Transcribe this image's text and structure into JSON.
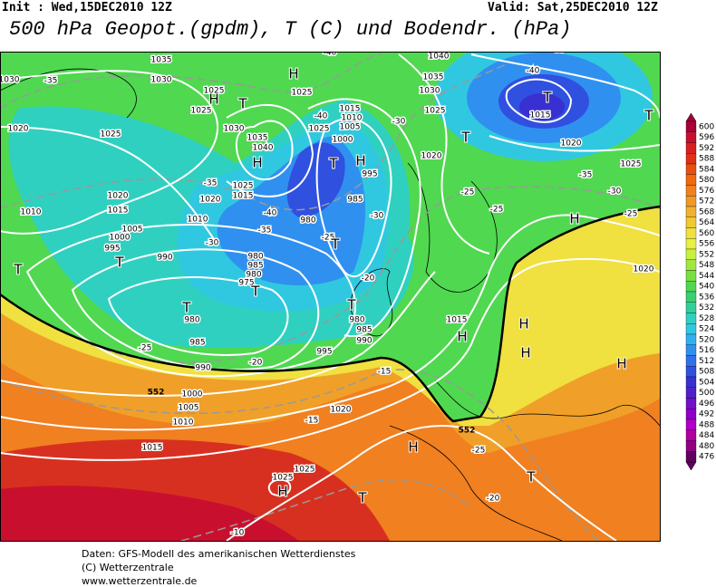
{
  "header": {
    "init": "Init : Wed,15DEC2010 12Z",
    "valid": "Valid: Sat,25DEC2010 12Z",
    "title": "500 hPa Geopot.(gpdm), T (C) und Bodendr. (hPa)"
  },
  "map": {
    "pressure_labels": [
      "1035",
      "1030",
      "1025",
      "1025",
      "1020",
      "1025",
      "1030",
      "1035",
      "1040",
      "1025",
      "1015",
      "1020",
      "1010",
      "1015",
      "1020",
      "1010",
      "1005",
      "1000",
      "995",
      "990",
      "985",
      "980",
      "980",
      "975",
      "980",
      "985",
      "990",
      "995",
      "1000",
      "1005",
      "1010",
      "1015",
      "1020",
      "1025",
      "1025",
      "1015",
      "1010",
      "1005",
      "1000",
      "995",
      "985",
      "980",
      "980",
      "985",
      "990",
      "1015",
      "1020",
      "1025",
      "1030",
      "1035",
      "1040",
      "1015",
      "1020",
      "1025",
      "1025",
      "1020",
      "1030",
      "1025"
    ],
    "temperature_labels": [
      "-35",
      "-40",
      "-40",
      "-35",
      "-40",
      "-35",
      "-30",
      "-30",
      "-25",
      "-25",
      "-25",
      "-35",
      "-40",
      "-35",
      "-30",
      "-25",
      "-20",
      "-25",
      "-20",
      "-15",
      "-15",
      "-25",
      "-20",
      "-10",
      "-30"
    ],
    "pressure_centers": [
      "H",
      "H",
      "H",
      "T",
      "T",
      "T",
      "T",
      "T",
      "T",
      "T",
      "T",
      "T",
      "T",
      "T",
      "T",
      "T",
      "H",
      "H",
      "H",
      "H",
      "H",
      "H",
      "H",
      "H"
    ],
    "contour_552": [
      "552",
      "552"
    ]
  },
  "colorbar": {
    "ticks": [
      600,
      596,
      592,
      588,
      584,
      580,
      576,
      572,
      568,
      564,
      560,
      556,
      552,
      548,
      544,
      540,
      536,
      532,
      528,
      524,
      520,
      516,
      512,
      508,
      504,
      500,
      496,
      492,
      488,
      484,
      480,
      476
    ],
    "colors": [
      "#a8003c",
      "#c8102e",
      "#d82020",
      "#e03018",
      "#e85010",
      "#f06810",
      "#f08020",
      "#f09828",
      "#f0b030",
      "#f0c830",
      "#f0e040",
      "#e8f040",
      "#c8f040",
      "#a0e840",
      "#78e040",
      "#50d850",
      "#38d070",
      "#30d098",
      "#30d0c0",
      "#30c8e0",
      "#30b0f0",
      "#3090f0",
      "#3070e8",
      "#3050e0",
      "#3830d0",
      "#5020c8",
      "#7010c8",
      "#9000c8",
      "#b000c8",
      "#b000a0",
      "#900080",
      "#600060"
    ]
  },
  "footer": [
    "Daten: GFS-Modell des amerikanischen Wetterdienstes",
    "(C) Wetterzentrale",
    "www.wetterzentrale.de"
  ]
}
